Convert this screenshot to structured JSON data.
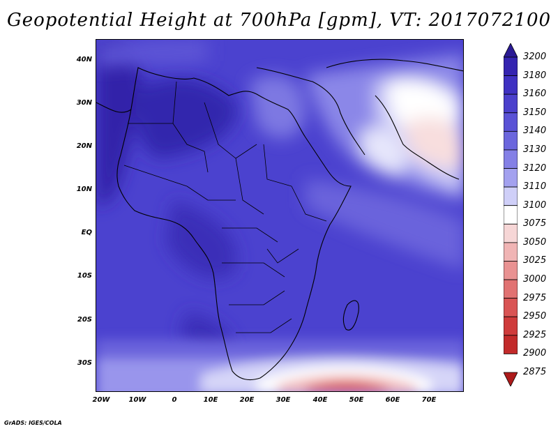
{
  "title": "Geopotential Height at 700hPa [gpm], VT: 2017072100",
  "credit": "GrADS: IGES/COLA",
  "axes": {
    "lat_labels": [
      "40N",
      "30N",
      "20N",
      "10N",
      "EQ",
      "10S",
      "20S",
      "30S"
    ],
    "lon_labels": [
      "20W",
      "10W",
      "0",
      "10E",
      "20E",
      "30E",
      "40E",
      "50E",
      "60E",
      "70E"
    ]
  },
  "colorbar": {
    "levels": [
      "3200",
      "3180",
      "3160",
      "3150",
      "3140",
      "3130",
      "3120",
      "3110",
      "3100",
      "3075",
      "3050",
      "3025",
      "3000",
      "2975",
      "2950",
      "2925",
      "2900",
      "2875"
    ],
    "colors": [
      "#2a1a94",
      "#3424b0",
      "#3f31c2",
      "#4b40cc",
      "#5a52d6",
      "#6b66dd",
      "#8480e6",
      "#a3a1ef",
      "#cfcff8",
      "#ffffff",
      "#f6d6d6",
      "#f0b4b4",
      "#e99292",
      "#e17272",
      "#d95454",
      "#cf3b3b",
      "#c22a2a",
      "#ad1b1b"
    ]
  },
  "map": {
    "field": "Geopotential Height at 700hPa",
    "units": "gpm",
    "valid_time": "2017072100"
  }
}
